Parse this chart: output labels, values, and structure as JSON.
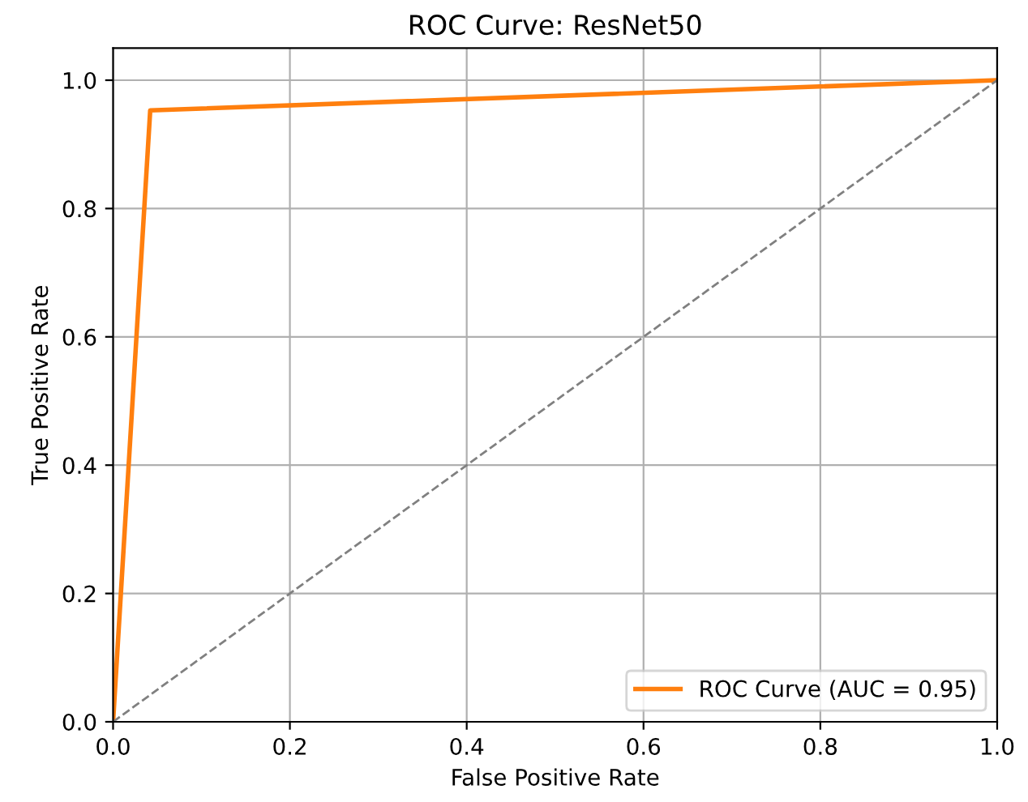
{
  "chart_data": {
    "type": "line",
    "title": "ROC Curve: ResNet50",
    "xlabel": "False Positive Rate",
    "ylabel": "True Positive Rate",
    "series": [
      {
        "name": "ROC Curve (AUC = 0.95)",
        "color": "#ff7f0e",
        "x": [
          0,
          0.042,
          1
        ],
        "values": [
          0,
          0.953,
          1
        ],
        "line_style": "solid"
      },
      {
        "color": "#808080",
        "x": [
          0,
          1
        ],
        "values": [
          0,
          1
        ],
        "line_style": "dashed"
      }
    ],
    "xlim": [
      0,
      1
    ],
    "ylim": [
      0,
      1.05
    ],
    "xticks": [
      {
        "value": 0,
        "label": "0.0"
      },
      0.2,
      0.4,
      0.6,
      0.8,
      {
        "value": 1,
        "label": "1.0"
      }
    ],
    "yticks": [
      {
        "value": 0,
        "label": "0.0"
      },
      0.2,
      0.4,
      0.6,
      0.8,
      {
        "value": 1,
        "label": "1.0"
      }
    ],
    "grid": true,
    "legend": "lower right",
    "marker": "none"
  }
}
